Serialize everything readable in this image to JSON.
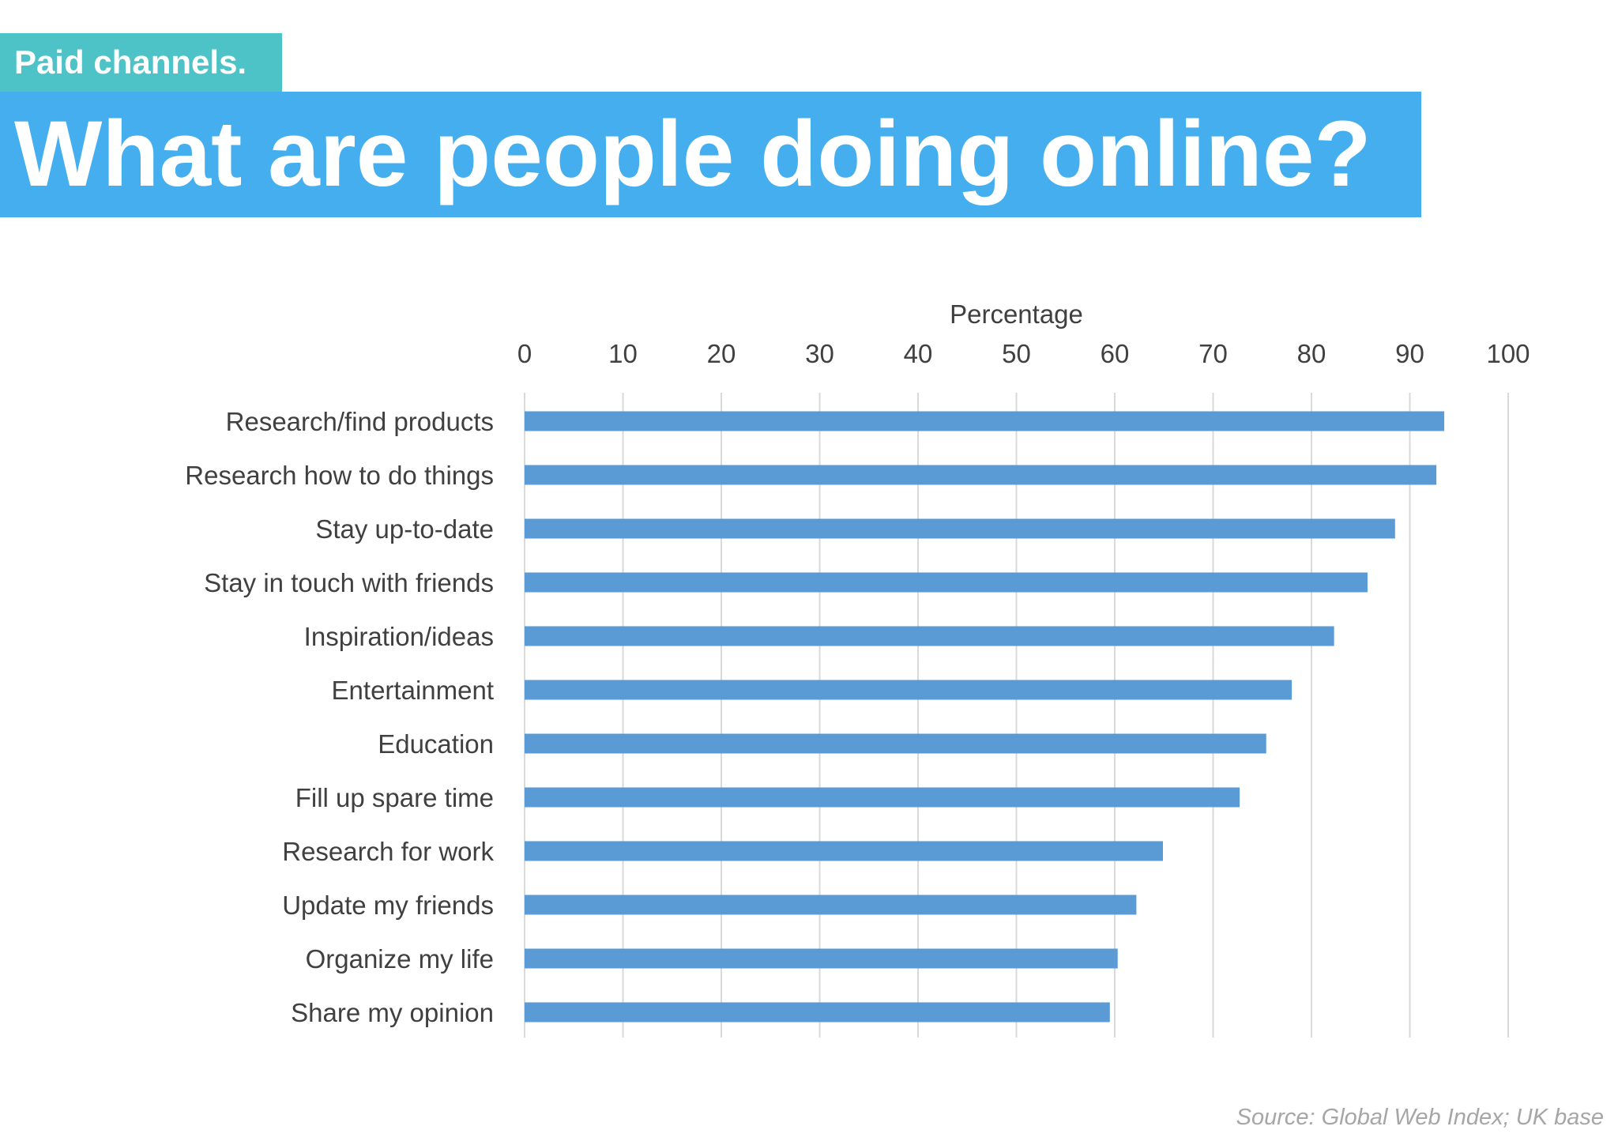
{
  "slide": {
    "tag": "Paid channels.",
    "headline": "What are people doing online?",
    "source": "Source: Global Web Index; UK base"
  },
  "colors": {
    "tag_bg": "#4ec3c7",
    "banner_bg": "#45aeee",
    "bar": "#5b9bd5",
    "grid": "#d9d9d9",
    "text": "#404040"
  },
  "chart_data": {
    "type": "bar",
    "orientation": "horizontal",
    "xlabel": "Percentage",
    "ylabel": "",
    "xlim": [
      0,
      100
    ],
    "xaxis_position": "top",
    "grid": true,
    "x_ticks": [
      0,
      10,
      20,
      30,
      40,
      50,
      60,
      70,
      80,
      90,
      100
    ],
    "categories": [
      "Research/find products",
      "Research how to do things",
      "Stay up-to-date",
      "Stay in touch with friends",
      "Inspiration/ideas",
      "Entertainment",
      "Education",
      "Fill up spare time",
      "Research for work",
      "Update my friends",
      "Organize my life",
      "Share my opinion"
    ],
    "values": [
      93.5,
      92.7,
      88.5,
      85.7,
      82.3,
      78,
      75.4,
      72.7,
      64.9,
      62.2,
      60.3,
      59.5
    ]
  }
}
